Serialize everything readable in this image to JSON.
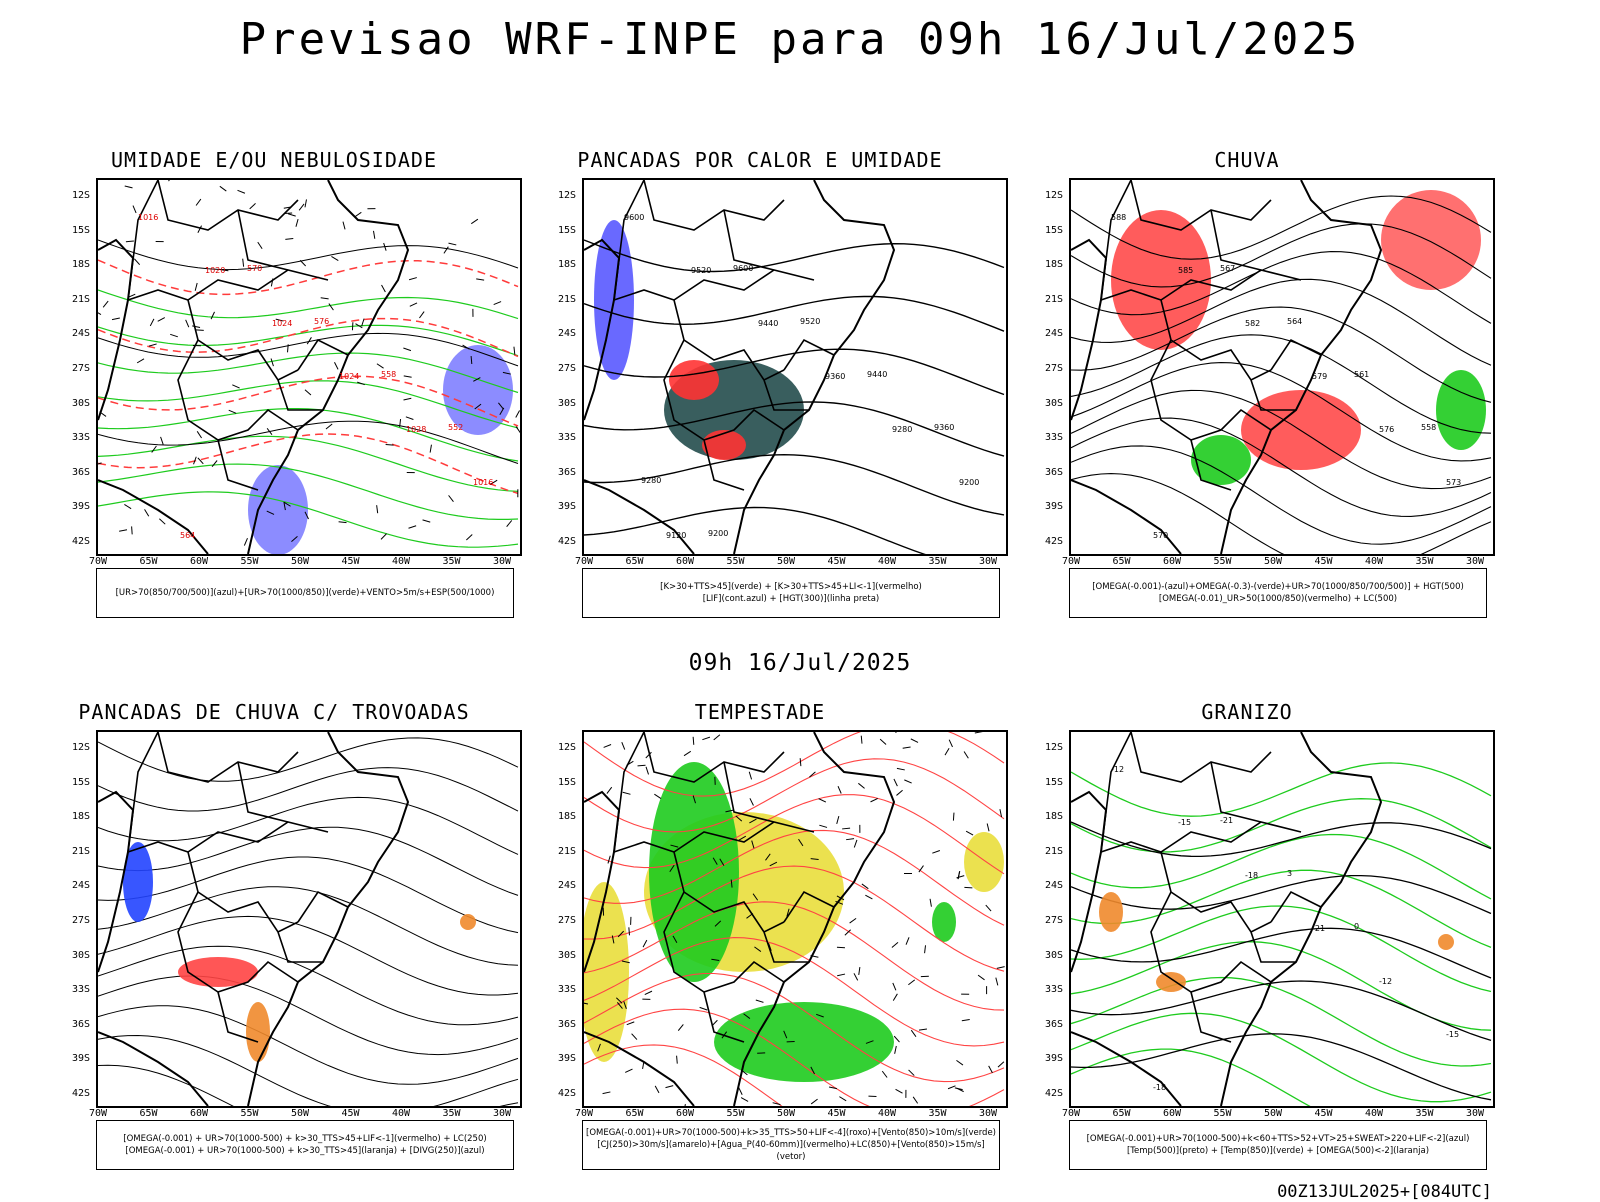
{
  "header": {
    "title": "Previsao WRF-INPE  para 09h 16/Jul/2025",
    "middle_date": "09h 16/Jul/2025",
    "footer": "00Z13JUL2025+[084UTC]"
  },
  "axes": {
    "lat_labels": [
      "12S",
      "15S",
      "18S",
      "21S",
      "24S",
      "27S",
      "30S",
      "33S",
      "36S",
      "39S",
      "42S"
    ],
    "lon_labels": [
      "70W",
      "65W",
      "60W",
      "55W",
      "50W",
      "45W",
      "40W",
      "35W",
      "30W"
    ]
  },
  "panels": [
    {
      "title": "UMIDADE E/OU NEBULOSIDADE",
      "legend": [
        "[UR>70(850/700/500)](azul)+[UR>70(1000/850)](verde)+VENTO>5m/s+ESP(500/1000)"
      ],
      "contour_labels": [
        "1016",
        "1020",
        "1024",
        "1024",
        "1028",
        "1016",
        "564",
        "570",
        "576",
        "558",
        "552"
      ]
    },
    {
      "title": "PANCADAS POR CALOR E UMIDADE",
      "legend": [
        "[K>30+TTS>45](verde) + [K>30+TTS>45+LI<-1](vermelho)",
        "[LIF](cont.azul) + [HGT(300)](linha preta)"
      ],
      "contour_labels": [
        "9600",
        "9520",
        "9440",
        "9360",
        "9280",
        "9200",
        "9120",
        "9600",
        "9520",
        "9440",
        "9360",
        "9280",
        "9200"
      ]
    },
    {
      "title": "CHUVA",
      "legend": [
        "[OMEGA(-0.001)-(azul)+OMEGA(-0.3)-(verde)+UR>70(1000/850/700/500)] + HGT(500)",
        "[OMEGA(-0.01)_UR>50(1000/850)(vermelho) + LC(500)"
      ],
      "contour_labels": [
        "588",
        "585",
        "582",
        "579",
        "576",
        "573",
        "570",
        "567",
        "564",
        "561",
        "558"
      ]
    },
    {
      "title": "PANCADAS DE CHUVA C/ TROVOADAS",
      "legend": [
        "[OMEGA(-0.001) + UR>70(1000-500) + k>30_TTS>45+LIF<-1](vermelho) + LC(250)",
        "[OMEGA(-0.001) + UR>70(1000-500) + k>30_TTS>45](laranja) + [DIVG(250)](azul)"
      ],
      "contour_labels": []
    },
    {
      "title": "TEMPESTADE",
      "legend": [
        "[OMEGA(-0.001)+UR>70(1000-500)+k>35_TTS>50+LIF<-4](roxo)+[Vento(850)>10m/s](verde)",
        "[CJ(250)>30m/s](amarelo)+[Agua_P(40-60mm)](vermelho)+LC(850)+[Vento(850)>15m/s](vetor)"
      ],
      "contour_labels": []
    },
    {
      "title": "GRANIZO",
      "legend": [
        "[OMEGA(-0.001)+UR>70(1000-500)+k<60+TTS>52+VT>25+SWEAT>220+LIF<-2](azul)",
        "[Temp(500)](preto) + [Temp(850)](verde) + [OMEGA(500)<-2](laranja)"
      ],
      "contour_labels": [
        "-12",
        "-15",
        "-18",
        "-21",
        "-12",
        "-15",
        "-18",
        "-21",
        "3",
        "0"
      ]
    }
  ]
}
